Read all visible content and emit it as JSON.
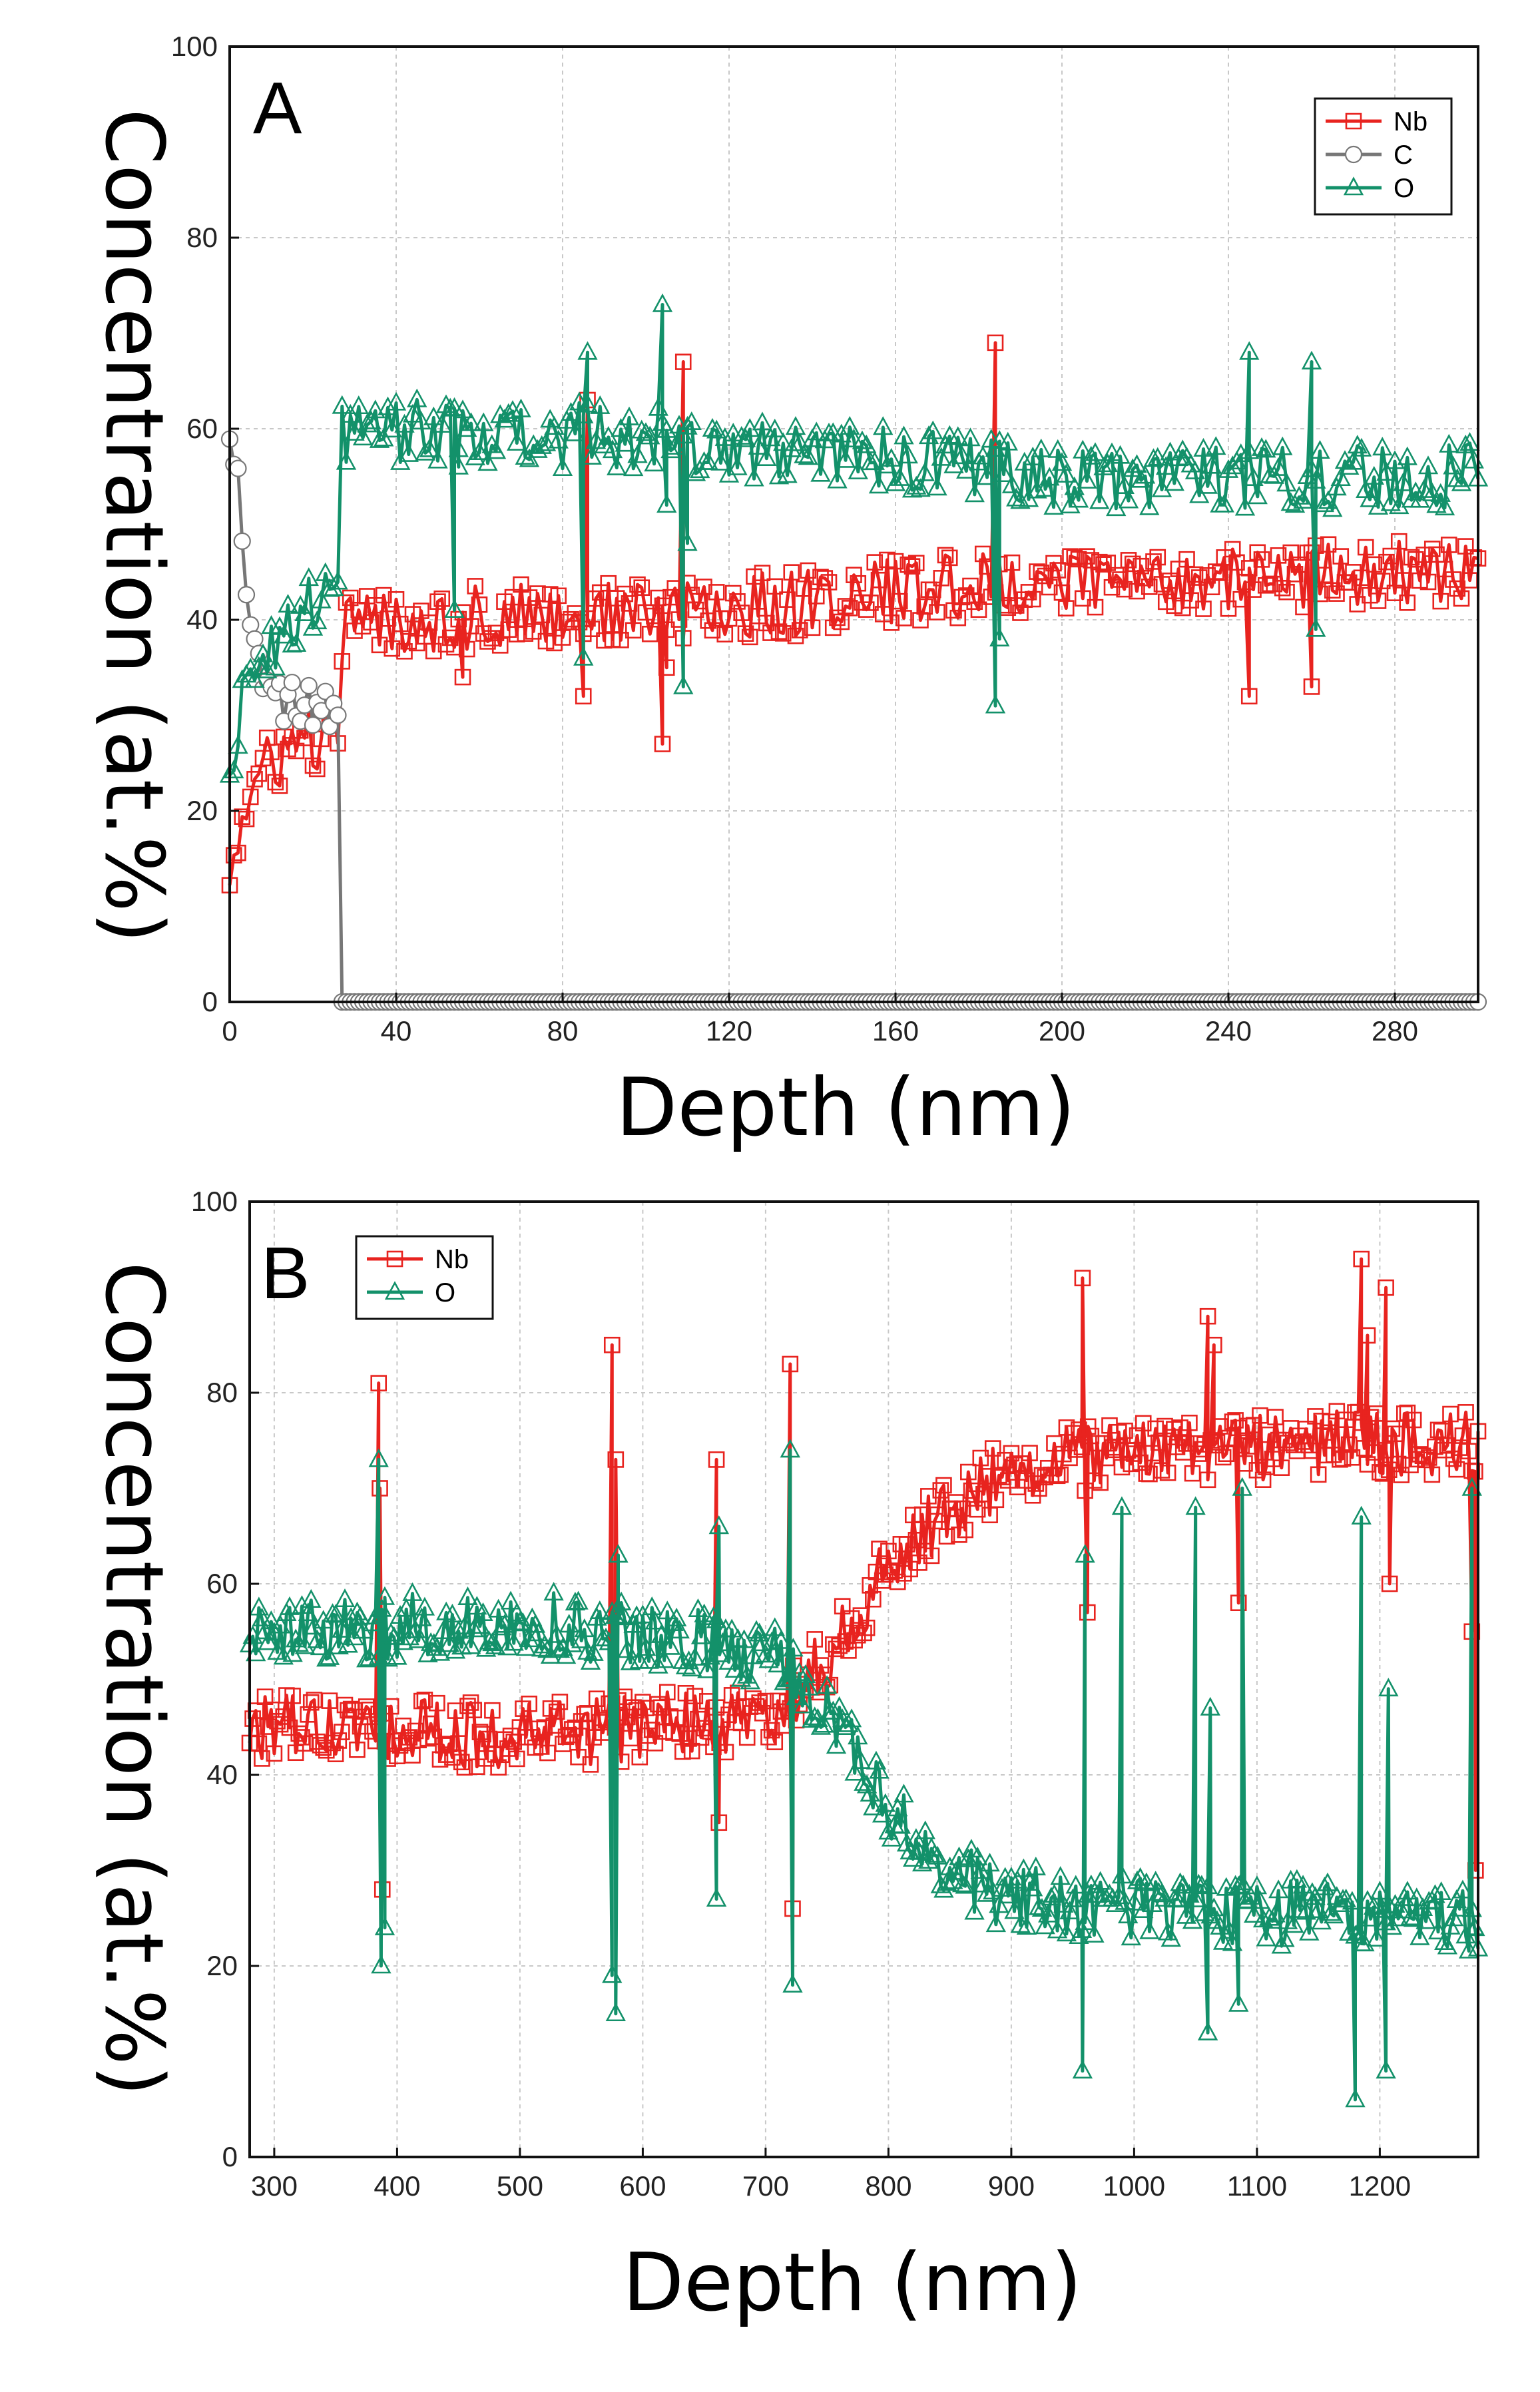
{
  "chart_data": [
    {
      "type": "scatter",
      "panel_label": "A",
      "xlabel": "Depth (nm)",
      "ylabel": "Concentration (at.%)",
      "xlim": [
        0,
        300
      ],
      "ylim": [
        0,
        100
      ],
      "xticks": [
        0,
        40,
        80,
        120,
        160,
        200,
        240,
        280
      ],
      "yticks": [
        0,
        20,
        40,
        60,
        80,
        100
      ],
      "grid": true,
      "legend_position": "top-right",
      "series": [
        {
          "name": "Nb",
          "color": "#e8231f",
          "marker": "square",
          "start_x": 0,
          "step": 1,
          "jitter": 3.5,
          "trend": [
            [
              0,
              14
            ],
            [
              3,
              19
            ],
            [
              8,
              24
            ],
            [
              15,
              27
            ],
            [
              26,
              28
            ],
            [
              27,
              39
            ],
            [
              40,
              40
            ],
            [
              120,
              41
            ],
            [
              160,
              43
            ],
            [
              200,
              44
            ],
            [
              300,
              45
            ]
          ],
          "spikes": [
            [
              56,
              34
            ],
            [
              85,
              32
            ],
            [
              104,
              27
            ],
            [
              105,
              35
            ],
            [
              109,
              67
            ],
            [
              184,
              69
            ],
            [
              245,
              32
            ],
            [
              260,
              33
            ],
            [
              86,
              63
            ]
          ]
        },
        {
          "name": "C",
          "color": "#777777",
          "marker": "circle",
          "start_x": 0,
          "step": 1,
          "jitter": 2.5,
          "trend": [
            [
              0,
              60
            ],
            [
              2,
              55
            ],
            [
              4,
              45
            ],
            [
              6,
              38
            ],
            [
              10,
              32
            ],
            [
              26,
              30
            ],
            [
              26.5,
              0
            ],
            [
              300,
              0
            ]
          ],
          "spikes": []
        },
        {
          "name": "O",
          "color": "#13916a",
          "marker": "triangle",
          "start_x": 0,
          "step": 1,
          "jitter": 3.5,
          "trend": [
            [
              0,
              25
            ],
            [
              3,
              32
            ],
            [
              8,
              37
            ],
            [
              15,
              40
            ],
            [
              26,
              43
            ],
            [
              27,
              60
            ],
            [
              100,
              59
            ],
            [
              160,
              57
            ],
            [
              200,
              55
            ],
            [
              300,
              55
            ]
          ],
          "spikes": [
            [
              54,
              41
            ],
            [
              55,
              56
            ],
            [
              85,
              36
            ],
            [
              86,
              68
            ],
            [
              104,
              73
            ],
            [
              105,
              52
            ],
            [
              109,
              33
            ],
            [
              110,
              48
            ],
            [
              184,
              31
            ],
            [
              185,
              38
            ],
            [
              245,
              68
            ],
            [
              260,
              67
            ],
            [
              261,
              39
            ]
          ]
        }
      ]
    },
    {
      "type": "scatter",
      "panel_label": "B",
      "xlabel": "Depth (nm)",
      "ylabel": "Concentration (at.%)",
      "xlim": [
        280,
        1280
      ],
      "ylim": [
        0,
        100
      ],
      "xticks": [
        300,
        400,
        500,
        600,
        700,
        800,
        900,
        1000,
        1100,
        1200
      ],
      "yticks": [
        0,
        20,
        40,
        60,
        80,
        100
      ],
      "grid": true,
      "legend_position": "top-left",
      "series": [
        {
          "name": "Nb",
          "color": "#e8231f",
          "marker": "square",
          "start_x": 280,
          "step": 2.5,
          "jitter": 3.5,
          "trend": [
            [
              280,
              45
            ],
            [
              500,
              44
            ],
            [
              700,
              46
            ],
            [
              750,
              52
            ],
            [
              800,
              62
            ],
            [
              850,
              68
            ],
            [
              900,
              72
            ],
            [
              1000,
              74
            ],
            [
              1280,
              75
            ]
          ],
          "spikes": [
            [
              385,
              81
            ],
            [
              386,
              70
            ],
            [
              388,
              28
            ],
            [
              575,
              85
            ],
            [
              578,
              73
            ],
            [
              580,
              46
            ],
            [
              660,
              73
            ],
            [
              662,
              35
            ],
            [
              720,
              83
            ],
            [
              722,
              26
            ],
            [
              958,
              92
            ],
            [
              962,
              57
            ],
            [
              1060,
              88
            ],
            [
              1065,
              85
            ],
            [
              1085,
              58
            ],
            [
              1185,
              94
            ],
            [
              1190,
              86
            ],
            [
              1205,
              91
            ],
            [
              1208,
              60
            ],
            [
              1275,
              55
            ],
            [
              1278,
              30
            ]
          ]
        },
        {
          "name": "O",
          "color": "#13916a",
          "marker": "triangle",
          "start_x": 280,
          "step": 2.5,
          "jitter": 3.5,
          "trend": [
            [
              280,
              55
            ],
            [
              500,
              56
            ],
            [
              700,
              53
            ],
            [
              750,
              47
            ],
            [
              800,
              37
            ],
            [
              850,
              30
            ],
            [
              900,
              27
            ],
            [
              1000,
              26
            ],
            [
              1280,
              25
            ]
          ],
          "spikes": [
            [
              385,
              73
            ],
            [
              387,
              20
            ],
            [
              390,
              24
            ],
            [
              575,
              19
            ],
            [
              578,
              15
            ],
            [
              580,
              63
            ],
            [
              660,
              27
            ],
            [
              662,
              66
            ],
            [
              720,
              74
            ],
            [
              722,
              18
            ],
            [
              958,
              9
            ],
            [
              960,
              63
            ],
            [
              990,
              68
            ],
            [
              1050,
              68
            ],
            [
              1060,
              13
            ],
            [
              1062,
              47
            ],
            [
              1085,
              16
            ],
            [
              1088,
              70
            ],
            [
              1180,
              6
            ],
            [
              1185,
              67
            ],
            [
              1205,
              9
            ],
            [
              1207,
              49
            ],
            [
              1275,
              70
            ],
            [
              1277,
              24
            ]
          ]
        }
      ]
    }
  ]
}
